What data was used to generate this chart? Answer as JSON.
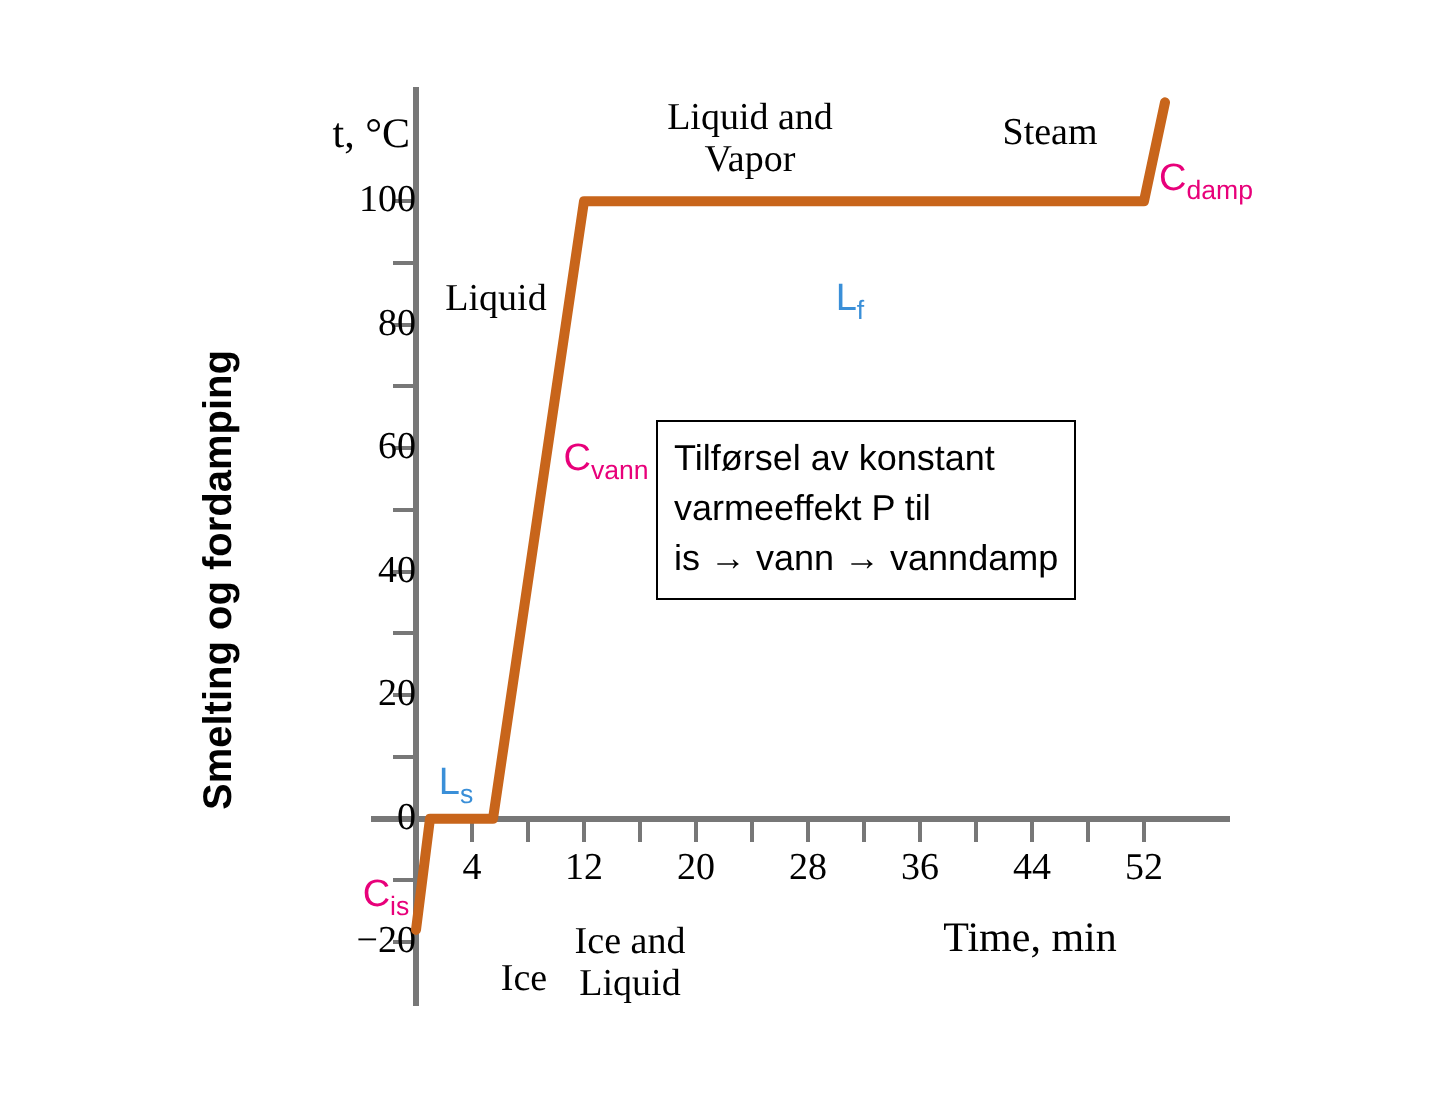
{
  "chart_data": {
    "type": "line",
    "title": "Smelting og fordamping",
    "ylabel": "t, °C",
    "xlabel": "Time, min",
    "x": [
      0,
      1,
      5.5,
      12,
      52,
      53.5
    ],
    "series": [
      {
        "color": "#c8651b",
        "values": [
          -18,
          0,
          0,
          100,
          100,
          116
        ]
      }
    ],
    "xlim": [
      -3,
      58
    ],
    "ylim": [
      -30,
      118
    ],
    "xticks": [
      4,
      {
        "value": 8,
        "label": null
      },
      12,
      {
        "value": 16,
        "label": null
      },
      20,
      {
        "value": 24,
        "label": null
      },
      28,
      {
        "value": 32,
        "label": null
      },
      36,
      {
        "value": 40,
        "label": null
      },
      44,
      {
        "value": 48,
        "label": null
      },
      52
    ],
    "yticks": [
      {
        "value": -20,
        "label": "−20"
      },
      {
        "value": -10,
        "label": null
      },
      0,
      {
        "value": 10,
        "label": null
      },
      20,
      {
        "value": 30,
        "label": null
      },
      40,
      {
        "value": 50,
        "label": null
      },
      60,
      {
        "value": 70,
        "label": null
      },
      80,
      {
        "value": 90,
        "label": null
      },
      100
    ],
    "grid": false,
    "legend": false,
    "marker": "none",
    "line_style": "solid",
    "annotations": [
      "Liquid",
      "Liquid and\nVapor",
      "Steam",
      "Ice",
      "Ice and\nLiquid",
      "C$_{damp}$",
      "L$_{f}$",
      "C$_{vann}$",
      "L$_{s}$",
      "C$_{is}$",
      "Tilførsel av konstant\nvarmeeffekt P til\nis → vann → vanndamp"
    ]
  }
}
